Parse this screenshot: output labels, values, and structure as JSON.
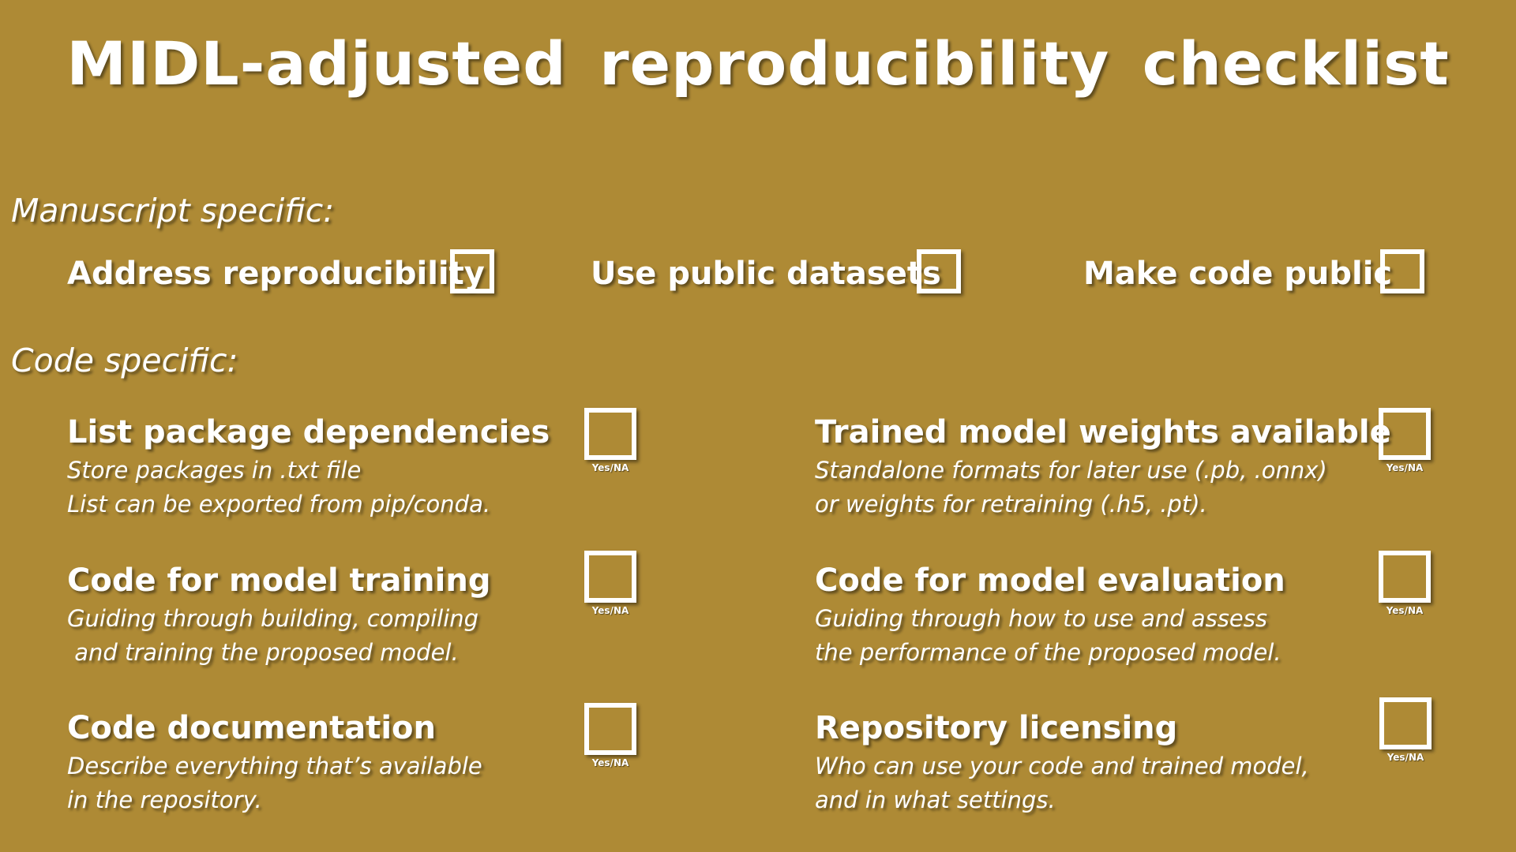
{
  "title": "MIDL-adjusted reproducibility checklist",
  "manuscript": {
    "heading": "Manuscript specific:",
    "items": [
      {
        "label": "Address reproducibility"
      },
      {
        "label": "Use public datasets"
      },
      {
        "label": "Make code public"
      }
    ]
  },
  "code": {
    "heading": "Code specific:",
    "checkbox_caption": "Yes/NA",
    "items": [
      {
        "heading": "List package dependencies",
        "desc": "Store packages in .txt file\nList can be exported from pip/conda."
      },
      {
        "heading": "Trained model weights available",
        "desc": "Standalone formats for later use (.pb, .onnx)\nor weights for retraining (.h5, .pt)."
      },
      {
        "heading": "Code for model training",
        "desc": "Guiding through building, compiling\n and training the proposed model."
      },
      {
        "heading": "Code for model evaluation",
        "desc": "Guiding through how to use and assess\nthe performance of the proposed model."
      },
      {
        "heading": "Code documentation",
        "desc": "Describe everything that’s available\nin the repository."
      },
      {
        "heading": "Repository licensing",
        "desc": "Who can use your code and trained model,\nand in what settings."
      }
    ]
  },
  "colors": {
    "background": "#AE8A35",
    "text": "#FFFFFF"
  }
}
